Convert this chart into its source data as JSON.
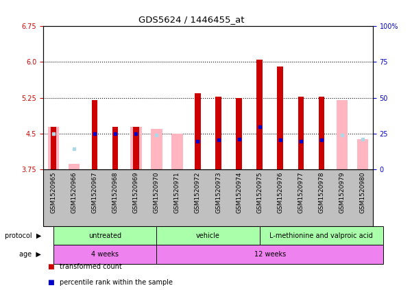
{
  "title": "GDS5624 / 1446455_at",
  "samples": [
    "GSM1520965",
    "GSM1520966",
    "GSM1520967",
    "GSM1520968",
    "GSM1520969",
    "GSM1520970",
    "GSM1520971",
    "GSM1520972",
    "GSM1520973",
    "GSM1520974",
    "GSM1520975",
    "GSM1520976",
    "GSM1520977",
    "GSM1520978",
    "GSM1520979",
    "GSM1520980"
  ],
  "red_values": [
    4.65,
    null,
    5.2,
    4.65,
    4.65,
    null,
    null,
    5.35,
    5.27,
    5.25,
    6.05,
    5.9,
    5.27,
    5.27,
    null,
    null
  ],
  "pink_values": [
    4.65,
    3.87,
    null,
    null,
    4.65,
    4.6,
    4.5,
    null,
    null,
    null,
    null,
    null,
    null,
    null,
    5.2,
    4.38
  ],
  "blue_dots": [
    null,
    null,
    4.5,
    4.5,
    4.5,
    null,
    null,
    4.35,
    4.37,
    4.38,
    4.65,
    4.37,
    4.35,
    4.37,
    null,
    null
  ],
  "light_blue_dots": [
    4.5,
    4.18,
    null,
    null,
    null,
    4.48,
    null,
    null,
    null,
    null,
    null,
    null,
    null,
    null,
    4.48,
    4.38
  ],
  "ylim": [
    3.75,
    6.75
  ],
  "yticks_left": [
    3.75,
    4.5,
    5.25,
    6.0,
    6.75
  ],
  "yticks_right_vals": [
    0,
    25,
    50,
    75,
    100
  ],
  "dotted_lines": [
    4.5,
    5.25,
    6.0
  ],
  "proto_groups": [
    {
      "label": "untreated",
      "start": 0,
      "end": 4,
      "color": "#aaffaa"
    },
    {
      "label": "vehicle",
      "start": 5,
      "end": 9,
      "color": "#aaffaa"
    },
    {
      "label": "L-methionine and valproic acid",
      "start": 10,
      "end": 15,
      "color": "#aaffaa"
    }
  ],
  "age_groups": [
    {
      "label": "4 weeks",
      "start": 0,
      "end": 4,
      "color": "#EE82EE"
    },
    {
      "label": "12 weeks",
      "start": 5,
      "end": 15,
      "color": "#EE82EE"
    }
  ],
  "red_color": "#CC0000",
  "pink_color": "#FFB6C1",
  "blue_color": "#0000CC",
  "light_blue_color": "#ADD8E6",
  "tick_color_left": "#CC0000",
  "tick_color_right": "#0000CC",
  "label_fontsize": 7.0,
  "title_fontsize": 9.5,
  "sample_gray": "#C0C0C0"
}
